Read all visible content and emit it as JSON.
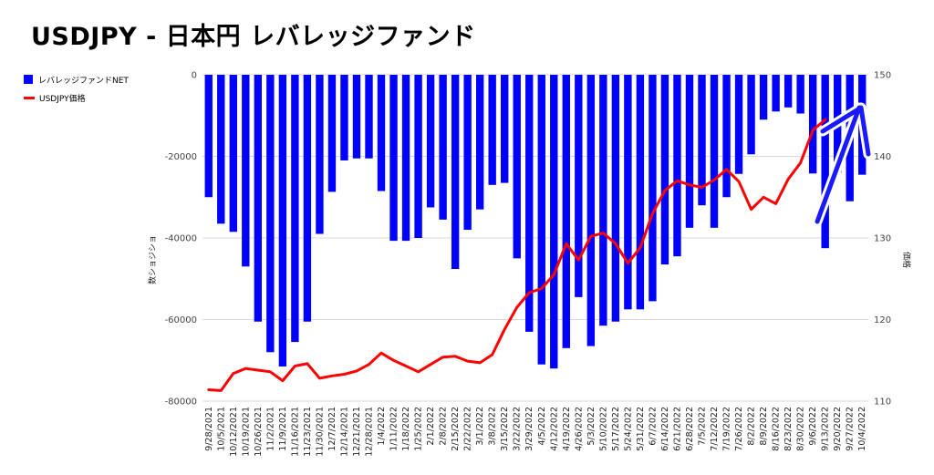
{
  "title": "USDJPY - 日本円 レバレッジファンド",
  "chart_data": {
    "type": "bar",
    "title": "USDJPY - 日本円 レバレッジファンド",
    "ylabel": "数ショジショ",
    "y2label": "価格",
    "ylim": [
      -80000,
      0
    ],
    "y2lim": [
      110,
      150
    ],
    "grid": true,
    "legend_position": "top-left",
    "colors": {
      "bars": "#0000ff",
      "line": "#ff0000",
      "arrow": "#1a1aff"
    },
    "x_tick_labels": [
      "9/28/2021",
      "10/5/2021",
      "10/12/2021",
      "10/19/2021",
      "10/26/2021",
      "11/2/2021",
      "11/9/2021",
      "11/16/2021",
      "11/23/2021",
      "11/30/2021",
      "12/7/2021",
      "12/14/2021",
      "12/21/2021",
      "12/28/2021",
      "1/4/2022",
      "1/11/2022",
      "1/18/2022",
      "1/25/2022",
      "2/1/2022",
      "2/8/2022",
      "2/15/2022",
      "2/22/2022",
      "3/1/2022",
      "3/8/2022",
      "3/15/2022",
      "3/22/2022",
      "3/29/2022",
      "4/5/2022",
      "4/12/2022",
      "4/19/2022",
      "4/26/2022",
      "5/3/2022",
      "5/10/2022",
      "5/17/2022",
      "5/24/2022",
      "5/31/2022",
      "6/7/2022",
      "6/14/2022",
      "6/21/2022",
      "6/28/2022",
      "7/5/2022",
      "7/12/2022",
      "7/19/2022",
      "7/26/2022",
      "8/2/2022",
      "8/9/2022",
      "8/16/2022",
      "8/23/2022",
      "8/30/2022",
      "9/6/2022",
      "9/13/2022",
      "9/20/2022",
      "9/27/2022",
      "10/4/2022"
    ],
    "y_ticks": [
      0,
      -20000,
      -40000,
      -60000,
      -80000
    ],
    "y2_ticks": [
      150,
      140,
      130,
      120,
      110
    ],
    "series": [
      {
        "name": "レバレッジファンドNET",
        "type": "bar",
        "values": [
          -30000,
          -36500,
          -38500,
          -47000,
          -60500,
          -68000,
          -71500,
          -65500,
          -60500,
          -39000,
          -28700,
          -21000,
          -20500,
          -20500,
          -28500,
          -40700,
          -40700,
          -40000,
          -32500,
          -35500,
          -47600,
          -38000,
          -33000,
          -27000,
          -26500,
          -45000,
          -63000,
          -71000,
          -72000,
          -67000,
          -54500,
          -66500,
          -61500,
          -60500,
          -57500,
          -57500,
          -55500,
          -46500,
          -44500,
          -37500,
          -32000,
          -37500,
          -30000,
          -24300,
          -19500,
          -11000,
          -9000,
          -8000,
          -9500,
          -24200,
          -42500,
          -24000,
          -31000,
          -24500
        ]
      },
      {
        "name": "USDJPY価格",
        "type": "line",
        "values": [
          111.4,
          111.3,
          113.4,
          114.0,
          113.8,
          113.6,
          112.5,
          114.3,
          114.6,
          112.8,
          113.1,
          113.3,
          113.7,
          114.5,
          115.9,
          115.0,
          114.3,
          113.6,
          114.5,
          115.4,
          115.5,
          114.9,
          114.7,
          115.7,
          118.8,
          121.5,
          123.3,
          123.8,
          125.5,
          129.3,
          127.3,
          130.2,
          130.6,
          129.3,
          126.9,
          128.8,
          133.0,
          135.8,
          137.0,
          136.5,
          136.2,
          137.1,
          138.4,
          136.9,
          133.5,
          135.0,
          134.2,
          137.2,
          139.2,
          143.2,
          144.5,
          null,
          null,
          null
        ]
      }
    ]
  }
}
